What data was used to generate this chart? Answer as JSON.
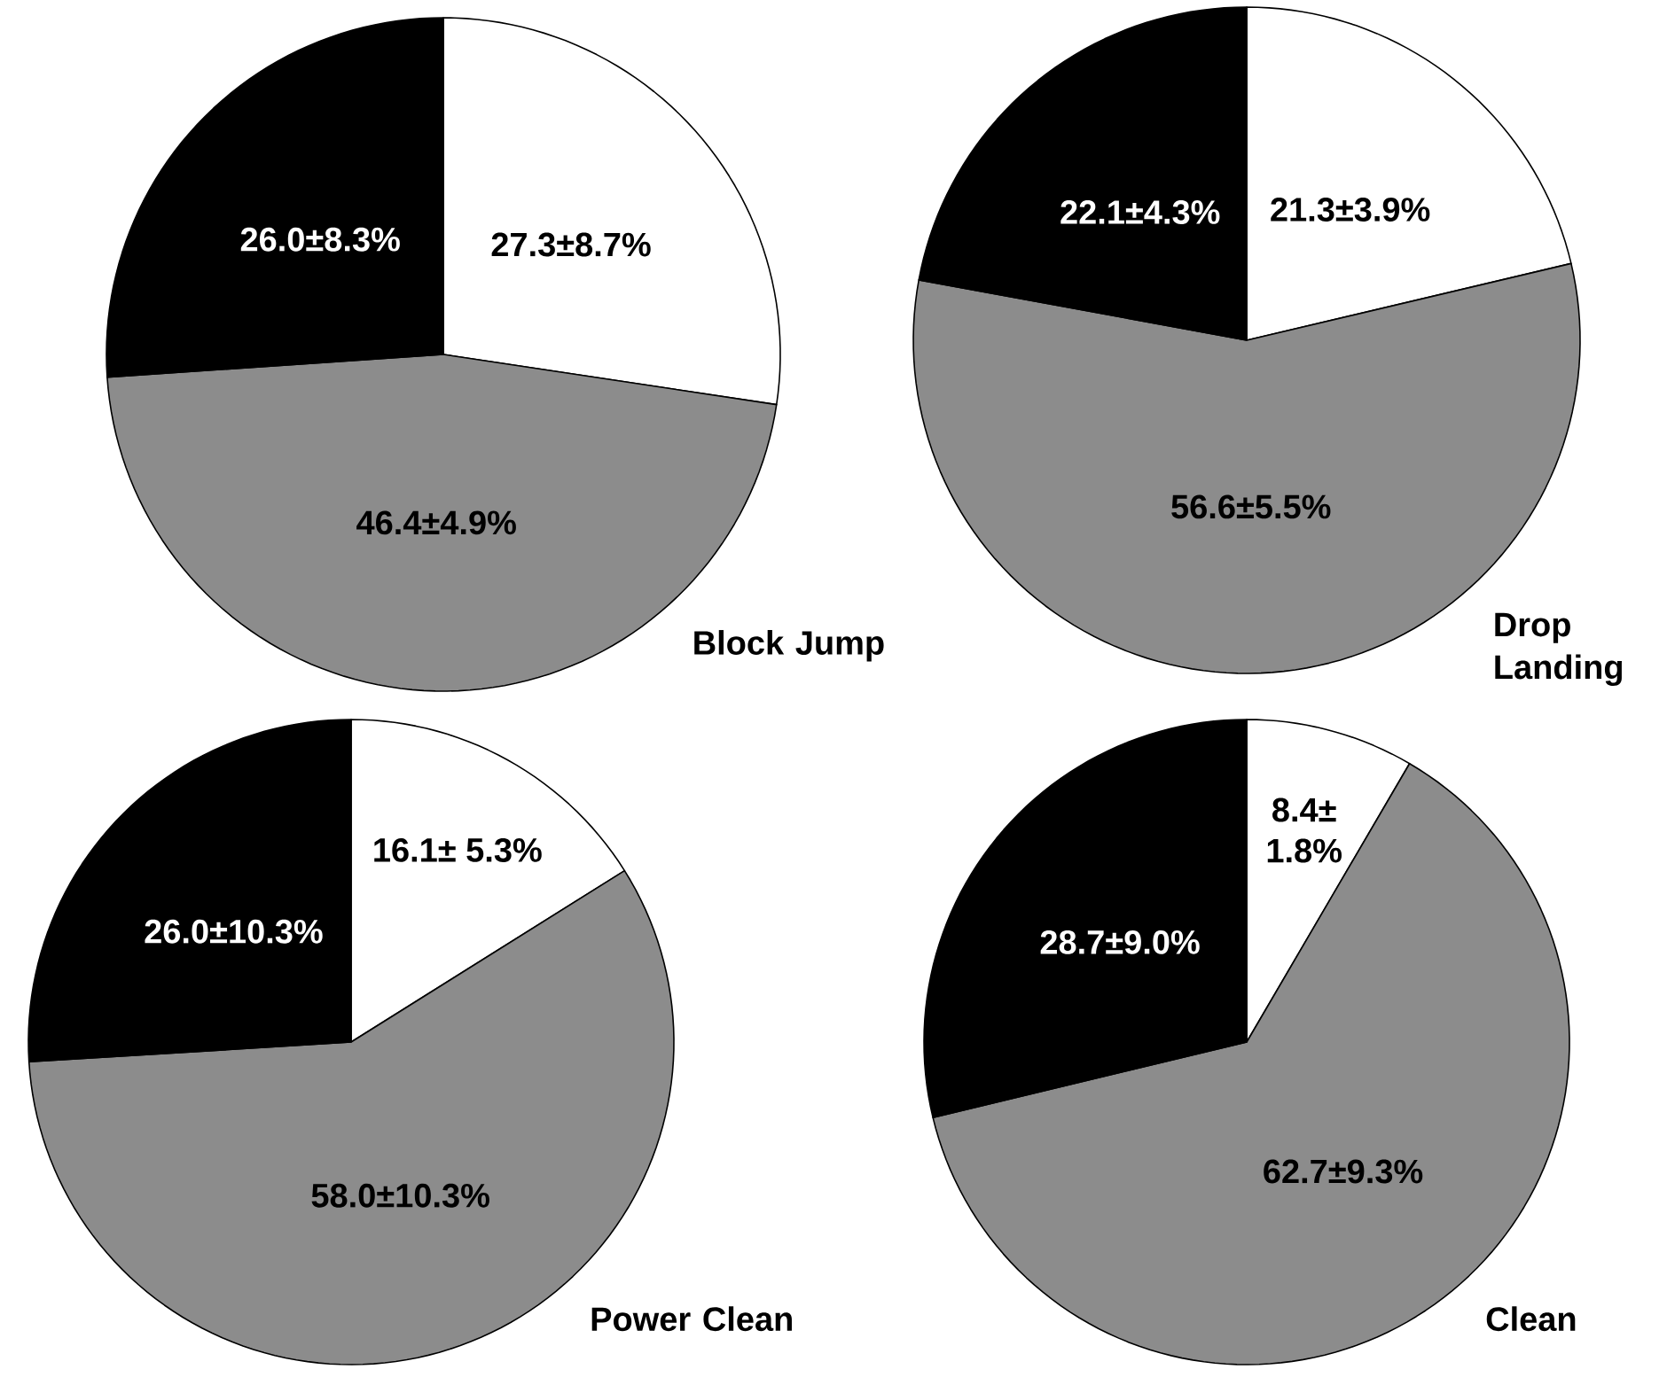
{
  "chart_data": [
    {
      "type": "pie",
      "title": "Block Jump",
      "categories": [
        null,
        null,
        null
      ],
      "values": [
        27.3,
        46.4,
        26.0
      ],
      "colors": [
        "#ffffff",
        "#8c8c8c",
        "#000000"
      ],
      "value_labels": [
        "27.3±8.7%",
        "46.4±4.9%",
        "26.0±8.3%"
      ]
    },
    {
      "type": "pie",
      "title": "Drop Landing",
      "categories": [
        null,
        null,
        null
      ],
      "values": [
        21.3,
        56.6,
        22.1
      ],
      "colors": [
        "#ffffff",
        "#8c8c8c",
        "#000000"
      ],
      "value_labels": [
        "21.3±3.9%",
        "56.6±5.5%",
        "22.1±4.3%"
      ]
    },
    {
      "type": "pie",
      "title": "Power Clean",
      "categories": [
        null,
        null,
        null
      ],
      "values": [
        16.1,
        58.0,
        26.0
      ],
      "colors": [
        "#ffffff",
        "#8c8c8c",
        "#000000"
      ],
      "value_labels": [
        "16.1± 5.3%",
        "58.0±10.3%",
        "26.0±10.3%"
      ]
    },
    {
      "type": "pie",
      "title": "Clean",
      "categories": [
        null,
        null,
        null
      ],
      "values": [
        8.4,
        62.7,
        28.7
      ],
      "colors": [
        "#ffffff",
        "#8c8c8c",
        "#000000"
      ],
      "value_labels": [
        "8.4± 1.8%",
        "62.7±9.3%",
        "28.7±9.0%"
      ]
    }
  ]
}
